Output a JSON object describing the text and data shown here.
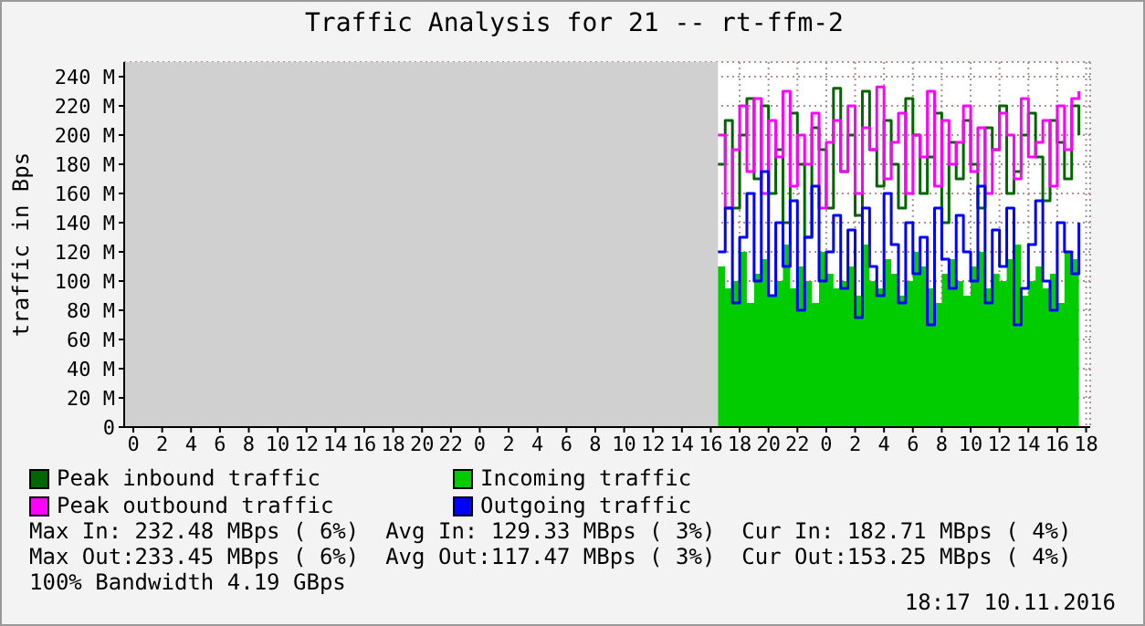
{
  "chart_data": {
    "type": "step",
    "title": "Traffic Analysis for 21 -- rt-ffm-2",
    "ylabel": "traffic in Bps",
    "x": [
      "2016-11-09T16:30",
      "2016-11-09T17:00",
      "2016-11-09T17:30",
      "2016-11-09T18:00",
      "2016-11-09T18:30",
      "2016-11-09T19:00",
      "2016-11-09T19:30",
      "2016-11-09T20:00",
      "2016-11-09T20:30",
      "2016-11-09T21:00",
      "2016-11-09T21:30",
      "2016-11-09T22:00",
      "2016-11-09T22:30",
      "2016-11-09T23:00",
      "2016-11-09T23:30",
      "2016-11-10T00:00",
      "2016-11-10T00:30",
      "2016-11-10T01:00",
      "2016-11-10T01:30",
      "2016-11-10T02:00",
      "2016-11-10T02:30",
      "2016-11-10T03:00",
      "2016-11-10T03:30",
      "2016-11-10T04:00",
      "2016-11-10T04:30",
      "2016-11-10T05:00",
      "2016-11-10T05:30",
      "2016-11-10T06:00",
      "2016-11-10T06:30",
      "2016-11-10T07:00",
      "2016-11-10T07:30",
      "2016-11-10T08:00",
      "2016-11-10T08:30",
      "2016-11-10T09:00",
      "2016-11-10T09:30",
      "2016-11-10T10:00",
      "2016-11-10T10:30",
      "2016-11-10T11:00",
      "2016-11-10T11:30",
      "2016-11-10T12:00",
      "2016-11-10T12:30",
      "2016-11-10T13:00",
      "2016-11-10T13:30",
      "2016-11-10T14:00",
      "2016-11-10T14:30",
      "2016-11-10T15:00",
      "2016-11-10T15:30",
      "2016-11-10T16:00",
      "2016-11-10T16:30",
      "2016-11-10T17:00",
      "2016-11-10T17:30"
    ],
    "series": [
      {
        "name": "Peak inbound traffic",
        "color": "#006600",
        "values": [
          180,
          210,
          150,
          200,
          225,
          170,
          220,
          160,
          190,
          140,
          215,
          180,
          130,
          205,
          190,
          150,
          232,
          175,
          200,
          145,
          230,
          190,
          165,
          210,
          180,
          150,
          225,
          200,
          160,
          185,
          215,
          140,
          195,
          170,
          210,
          180,
          150,
          205,
          190,
          220,
          160,
          175,
          200,
          215,
          185,
          155,
          210,
          195,
          170,
          220,
          200
        ]
      },
      {
        "name": "Incoming traffic",
        "type": "area",
        "color": "#00cc00",
        "values": [
          110,
          95,
          100,
          120,
          85,
          105,
          115,
          90,
          100,
          125,
          95,
          110,
          100,
          85,
          120,
          105,
          95,
          100,
          110,
          90,
          125,
          100,
          95,
          115,
          105,
          90,
          100,
          120,
          110,
          95,
          85,
          105,
          115,
          100,
          90,
          110,
          120,
          95,
          105,
          100,
          115,
          125,
          90,
          100,
          110,
          95,
          105,
          85,
          120,
          115,
          125
        ]
      },
      {
        "name": "Peak outbound traffic",
        "color": "#ff00ff",
        "values": [
          200,
          150,
          190,
          220,
          175,
          225,
          160,
          210,
          185,
          230,
          165,
          200,
          180,
          215,
          150,
          195,
          210,
          175,
          220,
          160,
          205,
          190,
          233,
          170,
          195,
          215,
          160,
          200,
          185,
          230,
          165,
          210,
          180,
          195,
          220,
          175,
          205,
          160,
          190,
          215,
          200,
          170,
          225,
          185,
          195,
          210,
          165,
          220,
          190,
          225,
          230
        ]
      },
      {
        "name": "Outgoing traffic",
        "color": "#0000ff",
        "values": [
          120,
          150,
          85,
          130,
          160,
          100,
          175,
          90,
          140,
          110,
          155,
          80,
          130,
          165,
          100,
          120,
          145,
          95,
          135,
          75,
          150,
          110,
          90,
          160,
          125,
          85,
          140,
          105,
          130,
          70,
          150,
          115,
          95,
          145,
          120,
          100,
          165,
          85,
          135,
          110,
          150,
          70,
          95,
          125,
          155,
          100,
          80,
          140,
          120,
          105,
          140
        ]
      }
    ],
    "xlim": [
      "2016-11-07T23:22",
      "2016-11-10T18:17"
    ],
    "xticks": [
      {
        "value": "2016-11-08T00:00",
        "label": "0"
      },
      {
        "value": "2016-11-08T02:00",
        "label": "2"
      },
      {
        "value": "2016-11-08T04:00",
        "label": "4"
      },
      {
        "value": "2016-11-08T06:00",
        "label": "6"
      },
      {
        "value": "2016-11-08T08:00",
        "label": "8"
      },
      {
        "value": "2016-11-08T10:00",
        "label": "10"
      },
      {
        "value": "2016-11-08T12:00",
        "label": "12"
      },
      {
        "value": "2016-11-08T14:00",
        "label": "14"
      },
      {
        "value": "2016-11-08T16:00",
        "label": "16"
      },
      {
        "value": "2016-11-08T18:00",
        "label": "18"
      },
      {
        "value": "2016-11-08T20:00",
        "label": "20"
      },
      {
        "value": "2016-11-08T22:00",
        "label": "22"
      },
      {
        "value": "2016-11-09T00:00",
        "label": "0"
      },
      {
        "value": "2016-11-09T02:00",
        "label": "2"
      },
      {
        "value": "2016-11-09T04:00",
        "label": "4"
      },
      {
        "value": "2016-11-09T06:00",
        "label": "6"
      },
      {
        "value": "2016-11-09T08:00",
        "label": "8"
      },
      {
        "value": "2016-11-09T10:00",
        "label": "10"
      },
      {
        "value": "2016-11-09T12:00",
        "label": "12"
      },
      {
        "value": "2016-11-09T14:00",
        "label": "14"
      },
      {
        "value": "2016-11-09T16:00",
        "label": "16"
      },
      {
        "value": "2016-11-09T18:00",
        "label": "18"
      },
      {
        "value": "2016-11-09T20:00",
        "label": "20"
      },
      {
        "value": "2016-11-09T22:00",
        "label": "22"
      },
      {
        "value": "2016-11-10T00:00",
        "label": "0"
      },
      {
        "value": "2016-11-10T02:00",
        "label": "2"
      },
      {
        "value": "2016-11-10T04:00",
        "label": "4"
      },
      {
        "value": "2016-11-10T06:00",
        "label": "6"
      },
      {
        "value": "2016-11-10T08:00",
        "label": "8"
      },
      {
        "value": "2016-11-10T10:00",
        "label": "10"
      },
      {
        "value": "2016-11-10T12:00",
        "label": "12"
      },
      {
        "value": "2016-11-10T14:00",
        "label": "14"
      },
      {
        "value": "2016-11-10T16:00",
        "label": "16"
      },
      {
        "value": "2016-11-10T18:00",
        "label": "18"
      }
    ],
    "ylim": [
      0,
      250
    ],
    "yticks": [
      0,
      {
        "value": 20,
        "label": "20 M"
      },
      {
        "value": 40,
        "label": "40 M"
      },
      {
        "value": 60,
        "label": "60 M"
      },
      {
        "value": 80,
        "label": "80 M"
      },
      {
        "value": 100,
        "label": "100 M"
      },
      {
        "value": 120,
        "label": "120 M"
      },
      {
        "value": 140,
        "label": "140 M"
      },
      {
        "value": 160,
        "label": "160 M"
      },
      {
        "value": 180,
        "label": "180 M"
      },
      {
        "value": 200,
        "label": "200 M"
      },
      {
        "value": 220,
        "label": "220 M"
      },
      {
        "value": 240,
        "label": "240 M"
      }
    ],
    "bands": [
      {
        "axis": "x",
        "from": "2016-11-07T23:22",
        "to": "2016-11-09T16:30",
        "color": "#d0d0d0"
      }
    ],
    "grid": true,
    "legend": "bottom",
    "annotations": [
      "Max In: 232.48 MBps ( 6%)  Avg In: 129.33 MBps ( 3%)  Cur In: 182.71 MBps ( 4%)",
      "Max Out:233.45 MBps ( 6%)  Avg Out:117.47 MBps ( 3%)  Cur Out:153.25 MBps ( 4%)",
      "100% Bandwidth 4.19 GBps",
      "18:17 10.11.2016"
    ]
  }
}
